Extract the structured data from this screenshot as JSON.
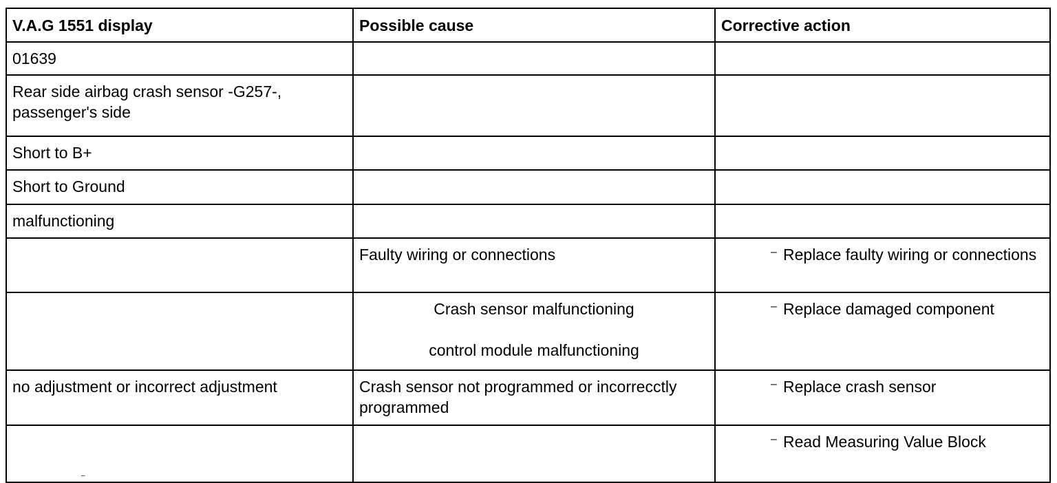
{
  "table": {
    "headers": {
      "display": "V.A.G 1551 display",
      "cause": "Possible cause",
      "action": "Corrective action"
    },
    "rows": {
      "code": "01639",
      "name": "Rear side airbag crash sensor -G257-, passenger's side",
      "short_bplus": "Short to B+",
      "short_ground": "Short to Ground",
      "malfunctioning": "malfunctioning",
      "wiring": {
        "cause": "Faulty wiring or connections",
        "action": "Replace faulty wiring or connections"
      },
      "crash": {
        "cause_1": "Crash sensor malfunctioning",
        "cause_2": "control module malfunctioning",
        "action": "Replace damaged component"
      },
      "noadj": {
        "display": "no adjustment or incorrect adjustment",
        "cause": "Crash sensor not programmed or incorrecctly programmed",
        "action": "Replace crash sensor"
      },
      "mvb": {
        "action": "Read Measuring Value Block"
      }
    },
    "dash_glyph": "–"
  }
}
